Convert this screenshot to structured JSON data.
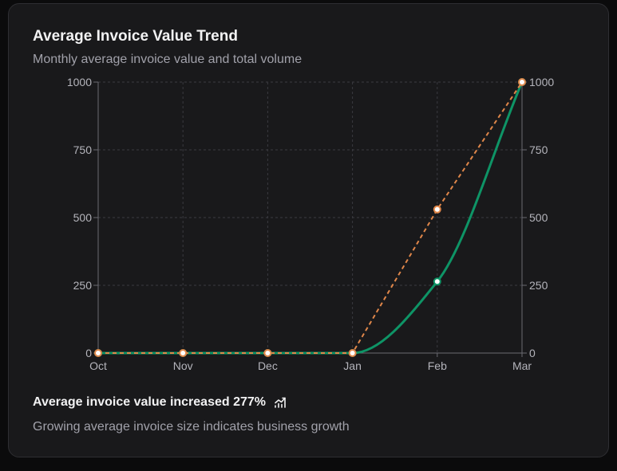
{
  "card": {
    "title": "Average Invoice Value Trend",
    "description": "Monthly average invoice value and total volume",
    "footer": {
      "headline": "Average invoice value increased 277%",
      "headline_icon": "trending-up-icon",
      "note": "Growing average invoice size indicates business growth"
    }
  },
  "colors": {
    "avg_line": "#0e9466",
    "volume_line": "#e0874a",
    "grid": "#3a3a40",
    "axis_text": "#b4b4bb"
  },
  "chart_data": {
    "type": "line",
    "categories": [
      "Oct",
      "Nov",
      "Dec",
      "Jan",
      "Feb",
      "Mar"
    ],
    "series": [
      {
        "name": "Average Invoice Value",
        "axis": "left",
        "style": "solid",
        "curve": "smooth",
        "values": [
          0,
          0,
          0,
          0,
          264,
          1000
        ]
      },
      {
        "name": "Total Volume",
        "axis": "right",
        "style": "dashed",
        "curve": "linear",
        "values": [
          0,
          0,
          0,
          0,
          530,
          1000
        ]
      }
    ],
    "y_left": {
      "ticks": [
        0,
        250,
        500,
        750,
        1000
      ],
      "ylim": [
        0,
        1000
      ]
    },
    "y_right": {
      "ticks": [
        0,
        250,
        500,
        750,
        1000
      ],
      "ylim": [
        0,
        1000
      ]
    },
    "grid": true,
    "title": "Average Invoice Value Trend",
    "xlabel": "",
    "ylabel": ""
  }
}
